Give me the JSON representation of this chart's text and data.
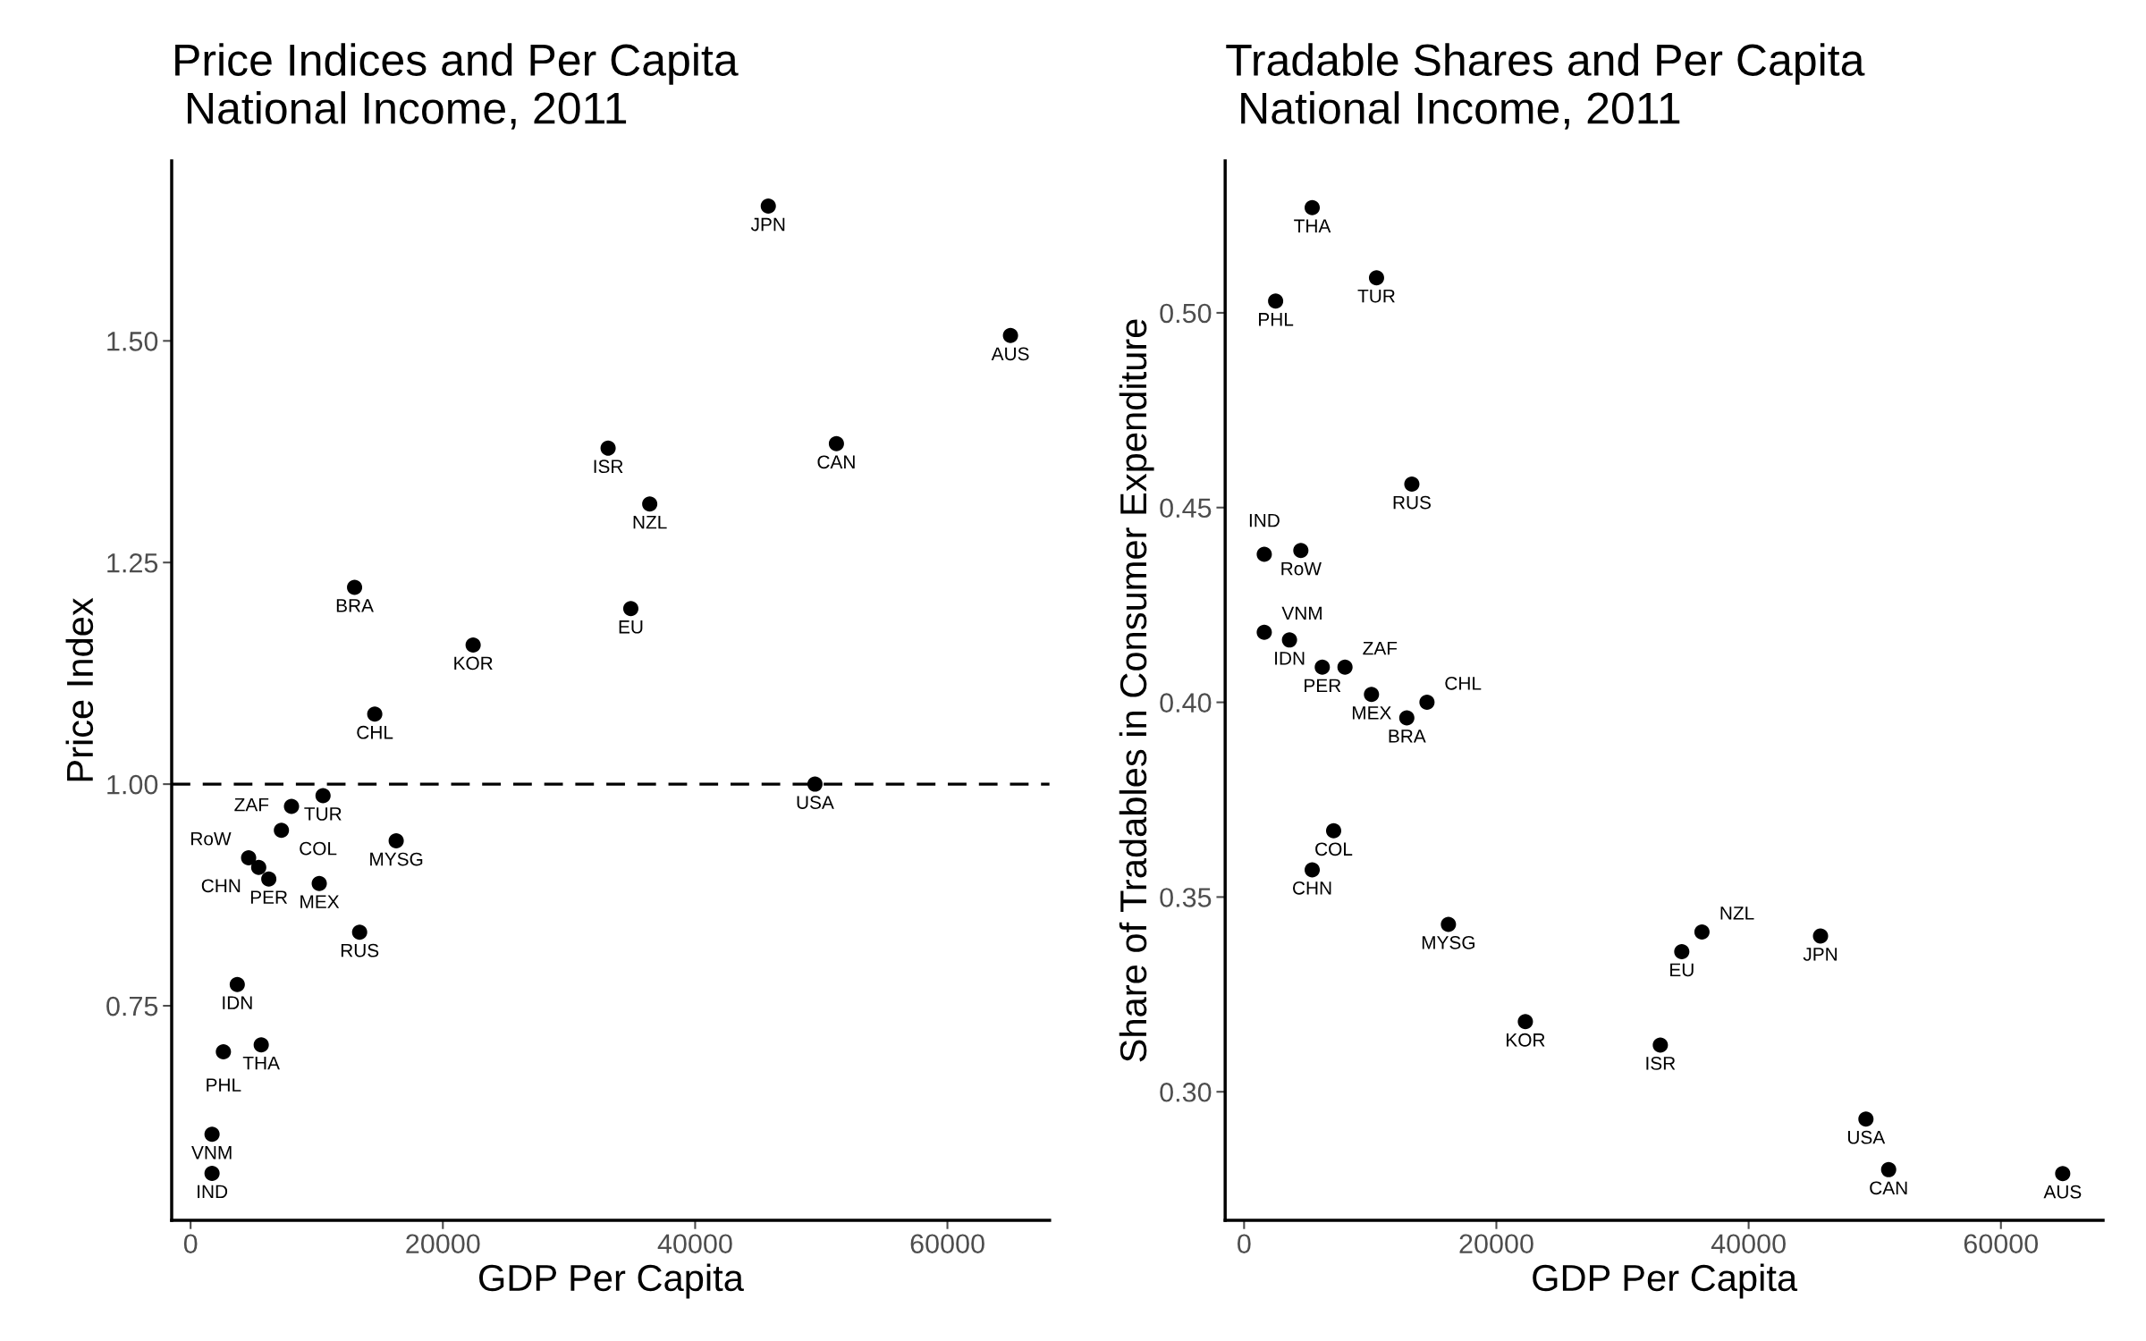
{
  "chart_data": [
    {
      "type": "scatter",
      "title": "Price Indices and Per Capita\n National Income, 2011",
      "xlabel": "GDP Per Capita",
      "ylabel": "Price Index",
      "marker": "circle",
      "grid": false,
      "legend": false,
      "color": "#000000",
      "x": [
        45800,
        65000,
        33100,
        51200,
        36400,
        34900,
        13000,
        22400,
        14600,
        49500,
        10500,
        8000,
        7200,
        4600,
        5400,
        6200,
        10200,
        16300,
        13400,
        3700,
        5600,
        2600,
        1700,
        1700
      ],
      "values": [
        1.652,
        1.506,
        1.379,
        1.384,
        1.316,
        1.198,
        1.222,
        1.157,
        1.079,
        1.0,
        0.987,
        0.975,
        0.948,
        0.917,
        0.906,
        0.893,
        0.888,
        0.936,
        0.833,
        0.774,
        0.706,
        0.698,
        0.605,
        0.561
      ],
      "xlim": [
        -1500,
        68100
      ],
      "xticks": [
        0,
        20000,
        40000,
        60000
      ],
      "ylim": [
        0.508,
        1.703
      ],
      "yticks": [
        {
          "value": 0.75,
          "label": "0.75"
        },
        {
          "value": 1.0,
          "label": "1.00"
        },
        {
          "value": 1.25,
          "label": "1.25"
        },
        {
          "value": 1.5,
          "label": "1.50"
        }
      ],
      "ref_lines": [
        {
          "axis": "y",
          "value": 1.0,
          "line_style": "dashed",
          "color": "#000000"
        }
      ],
      "annotations": [
        {
          "text": "JPN",
          "x": 45800,
          "y": 1.652
        },
        {
          "text": "AUS",
          "x": 65000,
          "y": 1.506
        },
        {
          "text": "ISR",
          "x": 33100,
          "y": 1.379
        },
        {
          "text": "CAN",
          "x": 51200,
          "y": 1.384
        },
        {
          "text": "NZL",
          "x": 36400,
          "y": 1.316
        },
        {
          "text": "EU",
          "x": 34900,
          "y": 1.198
        },
        {
          "text": "BRA",
          "x": 13000,
          "y": 1.222
        },
        {
          "text": "KOR",
          "x": 22400,
          "y": 1.157
        },
        {
          "text": "CHL",
          "x": 14600,
          "y": 1.079
        },
        {
          "text": "USA",
          "x": 49500,
          "y": 1.0
        },
        {
          "text": "TUR",
          "x": 10500,
          "y": 0.987
        },
        {
          "text": "ZAF",
          "x": 8000,
          "y": 0.975
        },
        {
          "text": "COL",
          "x": 7200,
          "y": 0.948
        },
        {
          "text": "RoW",
          "x": 4600,
          "y": 0.917
        },
        {
          "text": "CHN",
          "x": 5400,
          "y": 0.906
        },
        {
          "text": "PER",
          "x": 6200,
          "y": 0.893
        },
        {
          "text": "MEX",
          "x": 10200,
          "y": 0.888
        },
        {
          "text": "MYSG",
          "x": 16300,
          "y": 0.936
        },
        {
          "text": "RUS",
          "x": 13400,
          "y": 0.833
        },
        {
          "text": "IDN",
          "x": 3700,
          "y": 0.774
        },
        {
          "text": "THA",
          "x": 5600,
          "y": 0.706
        },
        {
          "text": "PHL",
          "x": 2600,
          "y": 0.698
        },
        {
          "text": "VNM",
          "x": 1700,
          "y": 0.605
        },
        {
          "text": "IND",
          "x": 1700,
          "y": 0.561
        }
      ]
    },
    {
      "type": "scatter",
      "title": "Tradable Shares and Per Capita\n National Income, 2011",
      "xlabel": "GDP Per Capita",
      "ylabel": "Share of Tradables in Consumer Expenditure",
      "marker": "circle",
      "grid": false,
      "legend": false,
      "color": "#000000",
      "x": [
        5400,
        10500,
        2500,
        13300,
        4500,
        1600,
        1600,
        3600,
        6200,
        8000,
        10100,
        14500,
        12900,
        7100,
        5400,
        16200,
        36300,
        34700,
        45700,
        22300,
        33000,
        49300,
        51100,
        64900
      ],
      "values": [
        0.527,
        0.509,
        0.503,
        0.456,
        0.439,
        0.438,
        0.418,
        0.416,
        0.409,
        0.409,
        0.402,
        0.4,
        0.396,
        0.367,
        0.357,
        0.343,
        0.341,
        0.336,
        0.34,
        0.318,
        0.312,
        0.293,
        0.28,
        0.279
      ],
      "xlim": [
        -1500,
        68100
      ],
      "xticks": [
        0,
        20000,
        40000,
        60000
      ],
      "ylim": [
        0.267,
        0.539
      ],
      "yticks": [
        {
          "value": 0.3,
          "label": "0.30"
        },
        {
          "value": 0.35,
          "label": "0.35"
        },
        {
          "value": 0.4,
          "label": "0.40"
        },
        {
          "value": 0.45,
          "label": "0.45"
        },
        {
          "value": 0.5,
          "label": "0.50"
        }
      ],
      "annotations": [
        {
          "text": "THA",
          "x": 5400,
          "y": 0.527
        },
        {
          "text": "TUR",
          "x": 10500,
          "y": 0.509
        },
        {
          "text": "PHL",
          "x": 2500,
          "y": 0.503
        },
        {
          "text": "RUS",
          "x": 13300,
          "y": 0.456
        },
        {
          "text": "RoW",
          "x": 4500,
          "y": 0.439
        },
        {
          "text": "IND",
          "x": 1600,
          "y": 0.438
        },
        {
          "text": "VNM",
          "x": 1600,
          "y": 0.418
        },
        {
          "text": "IDN",
          "x": 3600,
          "y": 0.416
        },
        {
          "text": "PER",
          "x": 6200,
          "y": 0.409
        },
        {
          "text": "ZAF",
          "x": 8000,
          "y": 0.409
        },
        {
          "text": "MEX",
          "x": 10100,
          "y": 0.402
        },
        {
          "text": "CHL",
          "x": 14500,
          "y": 0.4
        },
        {
          "text": "BRA",
          "x": 12900,
          "y": 0.396
        },
        {
          "text": "COL",
          "x": 7100,
          "y": 0.367
        },
        {
          "text": "CHN",
          "x": 5400,
          "y": 0.357
        },
        {
          "text": "MYSG",
          "x": 16200,
          "y": 0.343
        },
        {
          "text": "NZL",
          "x": 36300,
          "y": 0.341
        },
        {
          "text": "EU",
          "x": 34700,
          "y": 0.336
        },
        {
          "text": "JPN",
          "x": 45700,
          "y": 0.34
        },
        {
          "text": "KOR",
          "x": 22300,
          "y": 0.318
        },
        {
          "text": "ISR",
          "x": 33000,
          "y": 0.312
        },
        {
          "text": "USA",
          "x": 49300,
          "y": 0.293
        },
        {
          "text": "CAN",
          "x": 51100,
          "y": 0.28
        },
        {
          "text": "AUS",
          "x": 64900,
          "y": 0.279
        }
      ]
    }
  ]
}
